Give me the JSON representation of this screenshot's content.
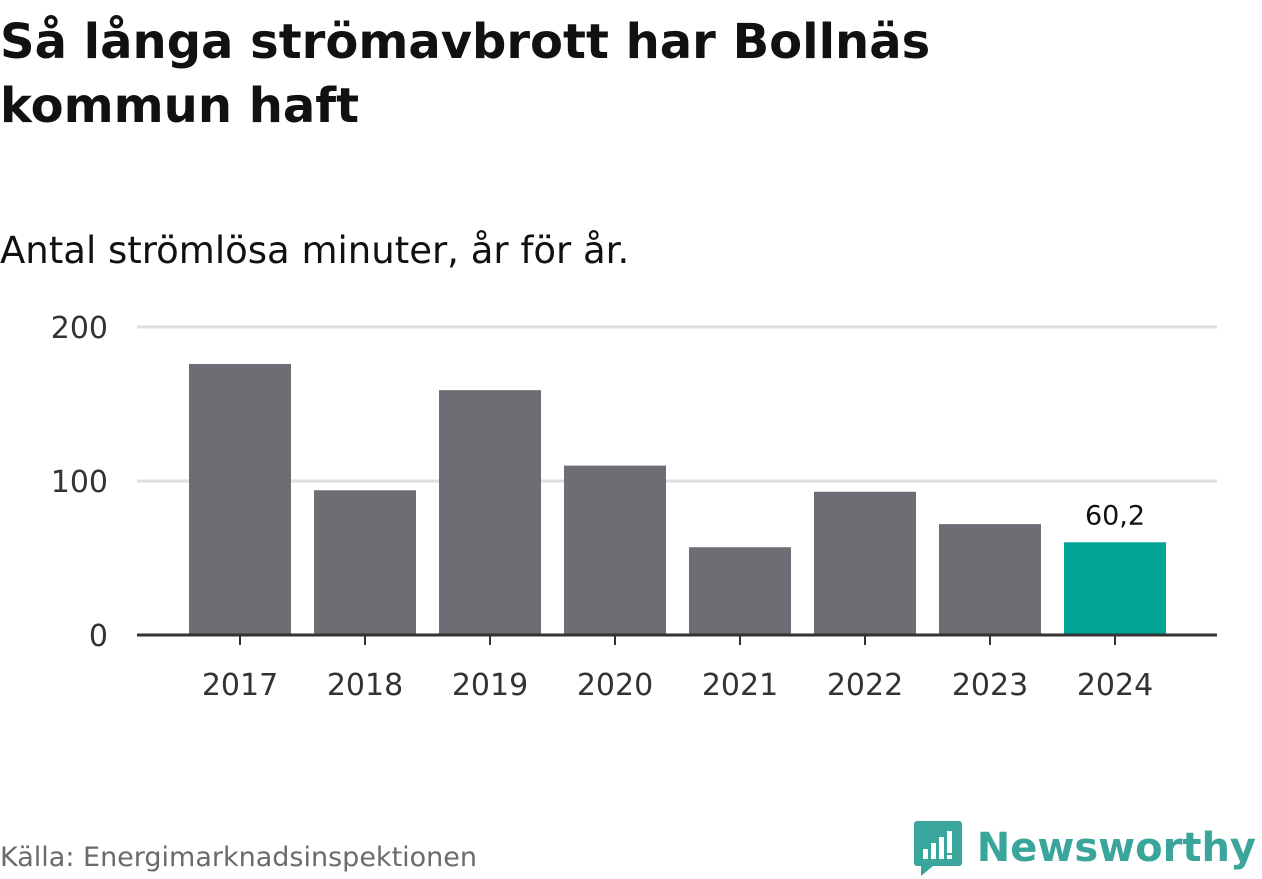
{
  "title": "Så långa strömavbrott har Bollnäs kommun haft",
  "subtitle": "Antal strömlösa minuter, år för år.",
  "source": "Källa: Energimarknadsinspektionen",
  "brand": "Newsworthy",
  "colors": {
    "bar": "#6e6d74",
    "highlight": "#00a497",
    "grid": "#dddddd",
    "axis": "#333333",
    "brand": "#3aa59a"
  },
  "chart_data": {
    "type": "bar",
    "categories": [
      "2017",
      "2018",
      "2019",
      "2020",
      "2021",
      "2022",
      "2023",
      "2024"
    ],
    "values": [
      176,
      94,
      159,
      110,
      57,
      93,
      72,
      60.2
    ],
    "highlight_index": 7,
    "value_labels": {
      "7": "60,2"
    },
    "yticks": [
      0,
      100,
      200
    ],
    "ylim": [
      0,
      200
    ],
    "grid": true,
    "xlabel": "",
    "ylabel": ""
  }
}
